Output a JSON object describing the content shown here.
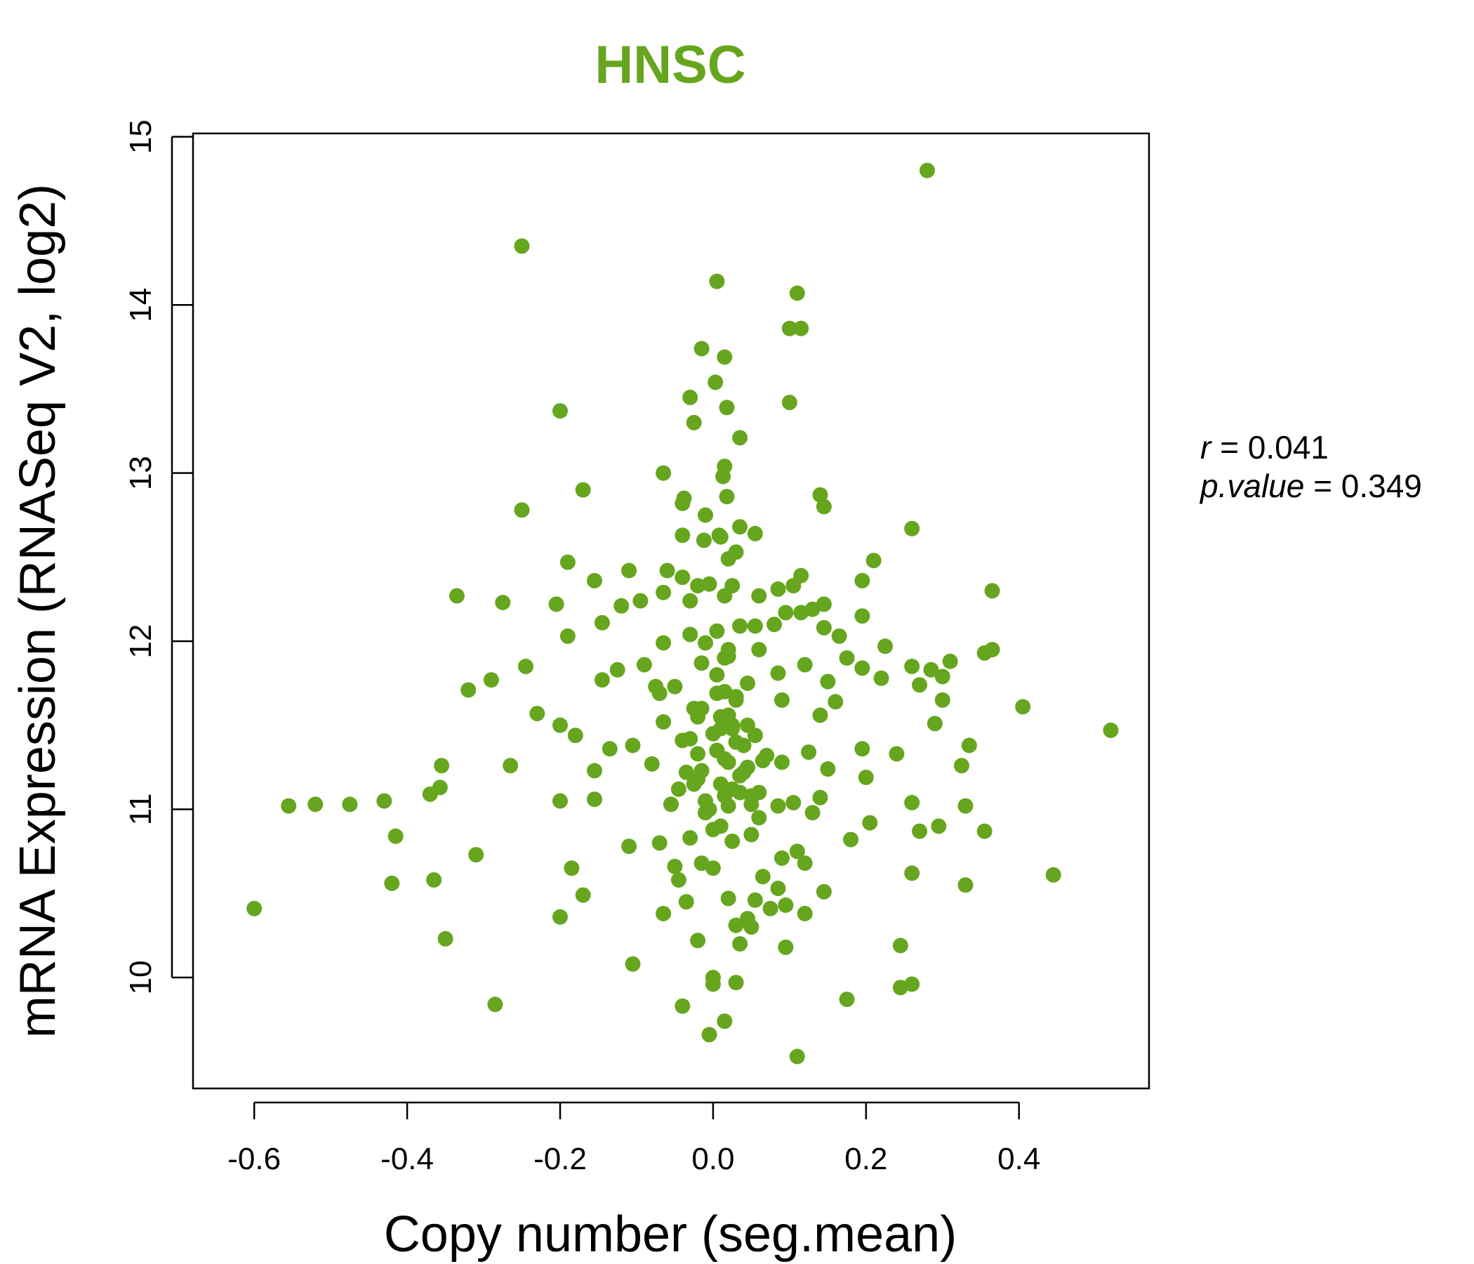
{
  "chart_data": {
    "type": "scatter",
    "title": "HNSC",
    "xlabel": "Copy number (seg.mean)",
    "ylabel": "mRNA Expression (RNASeq V2, log2)",
    "xlim": [
      -0.68,
      0.57
    ],
    "ylim": [
      9.34,
      15.02
    ],
    "xticks": [
      -0.6,
      -0.4,
      -0.2,
      0.0,
      0.2,
      0.4
    ],
    "xtick_labels": [
      "-0.6",
      "-0.4",
      "-0.2",
      "0.0",
      "0.2",
      "0.4"
    ],
    "yticks": [
      10,
      11,
      12,
      13,
      14,
      15
    ],
    "ytick_labels": [
      "10",
      "11",
      "12",
      "13",
      "14",
      "15"
    ],
    "point_color": "#66A61E",
    "title_color": "#66A61E",
    "stats": {
      "r_label": "r",
      "r_value": "0.041",
      "p_label": "p.value",
      "p_value": "0.349"
    },
    "series": [
      {
        "name": "samples",
        "x": [
          0.28,
          -0.25,
          0.005,
          0.11,
          0.1,
          0.115,
          -0.015,
          0.015,
          0.003,
          -0.03,
          -0.025,
          0.018,
          0.1,
          -0.2,
          0.035,
          0.015,
          0.013,
          -0.065,
          -0.17,
          -0.038,
          0.14,
          -0.04,
          0.145,
          -0.25,
          0.018,
          -0.01,
          0.035,
          0.26,
          -0.04,
          0.008,
          -0.012,
          0.01,
          0.055,
          0.03,
          0.02,
          0.21,
          -0.19,
          -0.06,
          -0.11,
          0.115,
          -0.04,
          -0.155,
          -0.005,
          -0.02,
          0.195,
          0.365,
          0.025,
          0.015,
          0.105,
          0.085,
          -0.335,
          -0.275,
          -0.03,
          -0.065,
          -0.095,
          0.06,
          -0.205,
          0.145,
          0.13,
          0.115,
          -0.12,
          -0.145,
          0.195,
          0.095,
          0.055,
          0.035,
          0.005,
          0.165,
          0.08,
          -0.03,
          -0.065,
          -0.01,
          0.145,
          0.06,
          -0.19,
          0.225,
          0.365,
          0.355,
          0.31,
          0.175,
          0.26,
          0.285,
          0.3,
          0.27,
          0.195,
          0.22,
          0.15,
          0.12,
          0.085,
          0.02,
          -0.245,
          -0.125,
          -0.09,
          -0.015,
          -0.145,
          -0.29,
          -0.32,
          -0.05,
          0.005,
          0.03,
          -0.075,
          -0.07,
          0.09,
          0.16,
          0.3,
          0.405,
          -0.23,
          -0.2,
          -0.18,
          0.29,
          0.14,
          0.02,
          -0.065,
          0.01,
          0.045,
          -0.135,
          -0.04,
          0.055,
          0.335,
          0.195,
          0.24,
          0.325,
          0.09,
          -0.155,
          -0.265,
          -0.355,
          -0.105,
          -0.08,
          0.065,
          0.15,
          -0.015,
          0.125,
          -0.02,
          0.2,
          0.52,
          -0.357,
          -0.37,
          -0.155,
          -0.2,
          -0.43,
          -0.475,
          -0.52,
          -0.555,
          0.26,
          0.33,
          0.14,
          0.05,
          -0.055,
          0.015,
          0.085,
          0.13,
          0.105,
          0.205,
          0.295,
          0.355,
          0.27,
          -0.415,
          -0.11,
          -0.07,
          -0.03,
          0.025,
          0.18,
          0.11,
          0.12,
          0.09,
          -0.31,
          -0.185,
          -0.05,
          0.0,
          -0.015,
          0.065,
          -0.42,
          -0.365,
          -0.17,
          -0.2,
          0.085,
          0.33,
          0.445,
          0.26,
          -0.6,
          0.145,
          0.055,
          0.02,
          -0.035,
          0.045,
          0.075,
          0.095,
          0.12,
          -0.065,
          -0.045,
          -0.35,
          -0.02,
          0.035,
          0.05,
          0.03,
          0.245,
          0.095,
          -0.105,
          -0.285,
          0.0,
          0.03,
          0.26,
          0.245,
          0.175,
          -0.04,
          0.015,
          0.11,
          0.0,
          -0.005,
          0.01,
          0.025,
          -0.02,
          0.04,
          0.06,
          -0.01,
          0.015,
          0.005,
          0.03,
          0.045,
          -0.025,
          0.02,
          0.0,
          0.01,
          0.035,
          0.05,
          -0.015,
          0.025,
          0.07,
          -0.045,
          0.015,
          0.005,
          -0.03,
          0.04,
          0.02,
          -0.005,
          0.06,
          0.01,
          -0.02,
          0.03,
          0.0,
          0.045,
          -0.01,
          0.025,
          0.015,
          -0.035,
          0.05,
          0.005,
          0.02,
          -0.025,
          0.035
        ],
        "y": [
          14.8,
          14.35,
          14.14,
          14.07,
          13.86,
          13.86,
          13.74,
          13.69,
          13.54,
          13.45,
          13.3,
          13.39,
          13.42,
          13.37,
          13.21,
          13.04,
          12.98,
          13.0,
          12.9,
          12.85,
          12.87,
          12.82,
          12.8,
          12.78,
          12.86,
          12.75,
          12.68,
          12.67,
          12.63,
          12.63,
          12.6,
          12.62,
          12.64,
          12.53,
          12.49,
          12.48,
          12.47,
          12.42,
          12.42,
          12.39,
          12.38,
          12.36,
          12.34,
          12.33,
          12.36,
          12.3,
          12.33,
          12.27,
          12.33,
          12.31,
          12.27,
          12.23,
          12.24,
          12.29,
          12.24,
          12.27,
          12.22,
          12.22,
          12.19,
          12.17,
          12.21,
          12.11,
          12.15,
          12.17,
          12.09,
          12.09,
          12.06,
          12.03,
          12.1,
          12.04,
          11.99,
          11.99,
          12.08,
          11.95,
          12.03,
          11.97,
          11.95,
          11.93,
          11.88,
          11.9,
          11.85,
          11.83,
          11.79,
          11.74,
          11.84,
          11.78,
          11.76,
          11.86,
          11.81,
          11.91,
          11.85,
          11.83,
          11.86,
          11.87,
          11.77,
          11.77,
          11.71,
          11.73,
          11.69,
          11.67,
          11.73,
          11.69,
          11.65,
          11.64,
          11.65,
          11.61,
          11.57,
          11.5,
          11.44,
          11.51,
          11.56,
          11.56,
          11.52,
          11.48,
          11.5,
          11.36,
          11.41,
          11.44,
          11.38,
          11.36,
          11.33,
          11.26,
          11.28,
          11.23,
          11.26,
          11.26,
          11.38,
          11.27,
          11.29,
          11.24,
          11.23,
          11.34,
          11.33,
          11.19,
          11.47,
          11.13,
          11.09,
          11.06,
          11.05,
          11.05,
          11.03,
          11.03,
          11.02,
          11.04,
          11.02,
          11.07,
          11.03,
          11.03,
          11.08,
          11.02,
          10.98,
          11.04,
          10.92,
          10.9,
          10.87,
          10.87,
          10.84,
          10.78,
          10.8,
          10.83,
          10.81,
          10.82,
          10.75,
          10.68,
          10.71,
          10.73,
          10.65,
          10.66,
          10.65,
          10.68,
          10.6,
          10.56,
          10.58,
          10.49,
          10.36,
          10.53,
          10.55,
          10.61,
          10.62,
          10.41,
          10.51,
          10.46,
          10.47,
          10.45,
          10.35,
          10.41,
          10.43,
          10.38,
          10.38,
          10.58,
          10.23,
          10.22,
          10.2,
          10.3,
          10.31,
          10.19,
          10.18,
          10.08,
          9.84,
          9.96,
          9.97,
          9.96,
          9.94,
          9.87,
          9.83,
          9.74,
          9.53,
          10.0,
          9.66,
          11.15,
          11.12,
          11.18,
          11.22,
          11.1,
          11.05,
          11.3,
          11.35,
          11.4,
          11.25,
          11.15,
          11.02,
          11.45,
          11.55,
          11.2,
          11.08,
          11.6,
          11.5,
          11.32,
          11.12,
          11.7,
          11.8,
          11.42,
          11.38,
          11.28,
          11.0,
          10.95,
          10.9,
          11.55,
          11.65,
          10.88,
          11.75,
          10.98,
          11.48,
          11.9,
          11.22,
          10.85,
          11.35,
          11.95,
          11.6,
          11.1
        ]
      }
    ]
  }
}
